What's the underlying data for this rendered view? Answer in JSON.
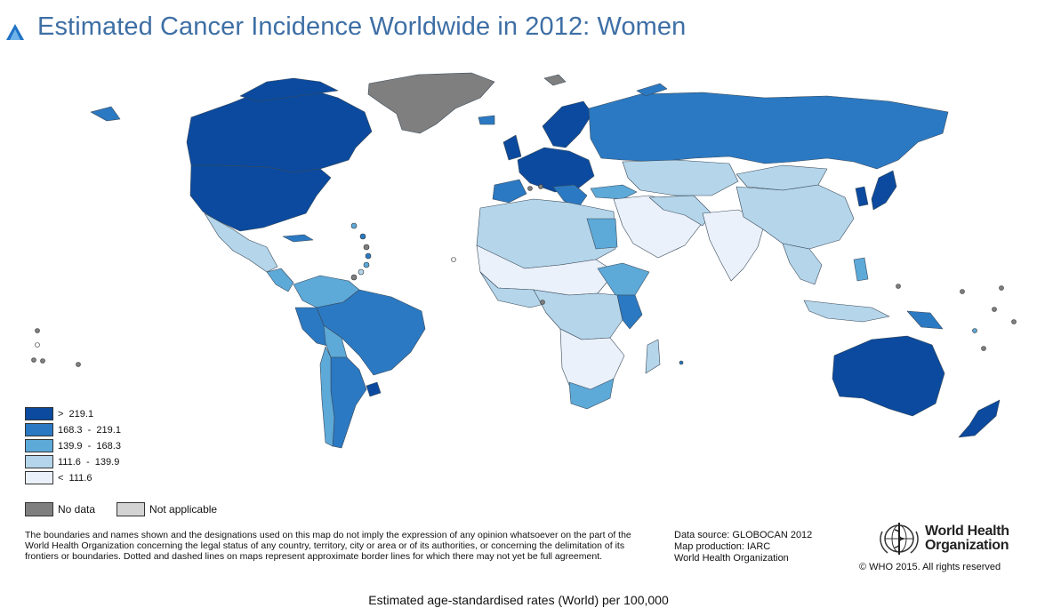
{
  "title": "Estimated Cancer Incidence Worldwide in 2012: Women",
  "legend": {
    "classes": [
      {
        "label": ">  219.1",
        "color": "#0b4a9e"
      },
      {
        "label": "168.3  -  219.1",
        "color": "#2b79c2"
      },
      {
        "label": "139.9  -  168.3",
        "color": "#5da9d8"
      },
      {
        "label": "111.6  -  139.9",
        "color": "#b4d5ea"
      },
      {
        "label": "<  111.6",
        "color": "#eaf1fa"
      }
    ],
    "no_data": {
      "label": "No data",
      "color": "#7f7f7f"
    },
    "not_applicable": {
      "label": "Not applicable",
      "color": "#d3d3d3"
    }
  },
  "disclaimer": "The boundaries and names shown and the designations used on this map do not imply the expression of any opinion whatsoever on the part of the World Health Organization concerning the legal status of any country, territory, city or area or of its authorities, or concerning the delimitation of its frontiers or boundaries. Dotted and dashed lines on maps represent approximate border lines for which there may not yet be full agreement.",
  "source": {
    "line1": "Data source: GLOBOCAN 2012",
    "line2": "Map production: IARC",
    "line3": "World Health Organization"
  },
  "who_logo": {
    "line1": "World Health",
    "line2": "Organization"
  },
  "copyright": "© WHO 2015. All rights reserved",
  "caption": "Estimated age-standardised rates (World) per 100,000"
}
